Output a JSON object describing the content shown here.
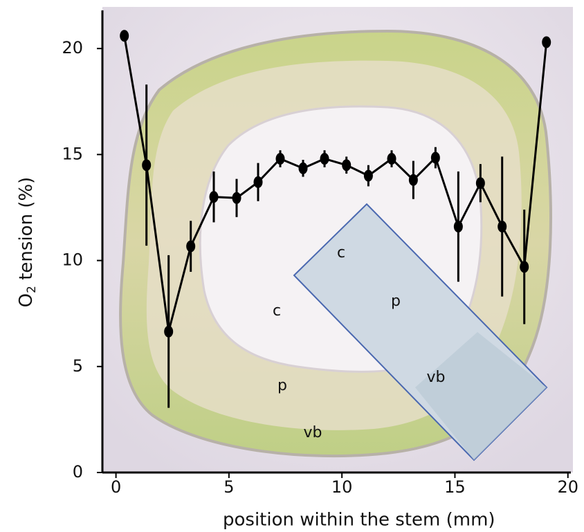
{
  "chart_data": {
    "type": "line",
    "y_label": {
      "base": "O",
      "sub": "2",
      "rest": " tension (%)"
    },
    "x_label": "position within the stem (mm)",
    "x": [
      0.37,
      1.35,
      2.33,
      3.31,
      4.33,
      5.34,
      6.29,
      7.27,
      8.28,
      9.23,
      10.2,
      11.17,
      12.2,
      13.16,
      14.14,
      15.15,
      16.13,
      17.09,
      18.07,
      19.05
    ],
    "series": [
      {
        "color": "#000000",
        "values": [
          20.6,
          14.5,
          6.65,
          10.67,
          13.0,
          12.95,
          13.7,
          14.8,
          14.35,
          14.8,
          14.5,
          14.0,
          14.8,
          13.8,
          14.85,
          11.6,
          13.65,
          11.6,
          9.7,
          20.3
        ],
        "errors": [
          null,
          3.8,
          3.6,
          1.2,
          1.2,
          0.9,
          0.9,
          0.4,
          0.4,
          0.4,
          0.4,
          0.5,
          0.4,
          0.9,
          0.5,
          2.6,
          0.9,
          3.3,
          2.7,
          null
        ]
      }
    ],
    "xlim": [
      -0.6,
      20.1
    ],
    "ylim": [
      0,
      21.8
    ],
    "xticks": [
      0,
      5,
      10,
      15,
      20
    ],
    "yticks": [
      0,
      5,
      10,
      15,
      20
    ],
    "grid": false,
    "annotations": [
      "c",
      "p",
      "vb",
      "c",
      "p",
      "vb"
    ]
  }
}
